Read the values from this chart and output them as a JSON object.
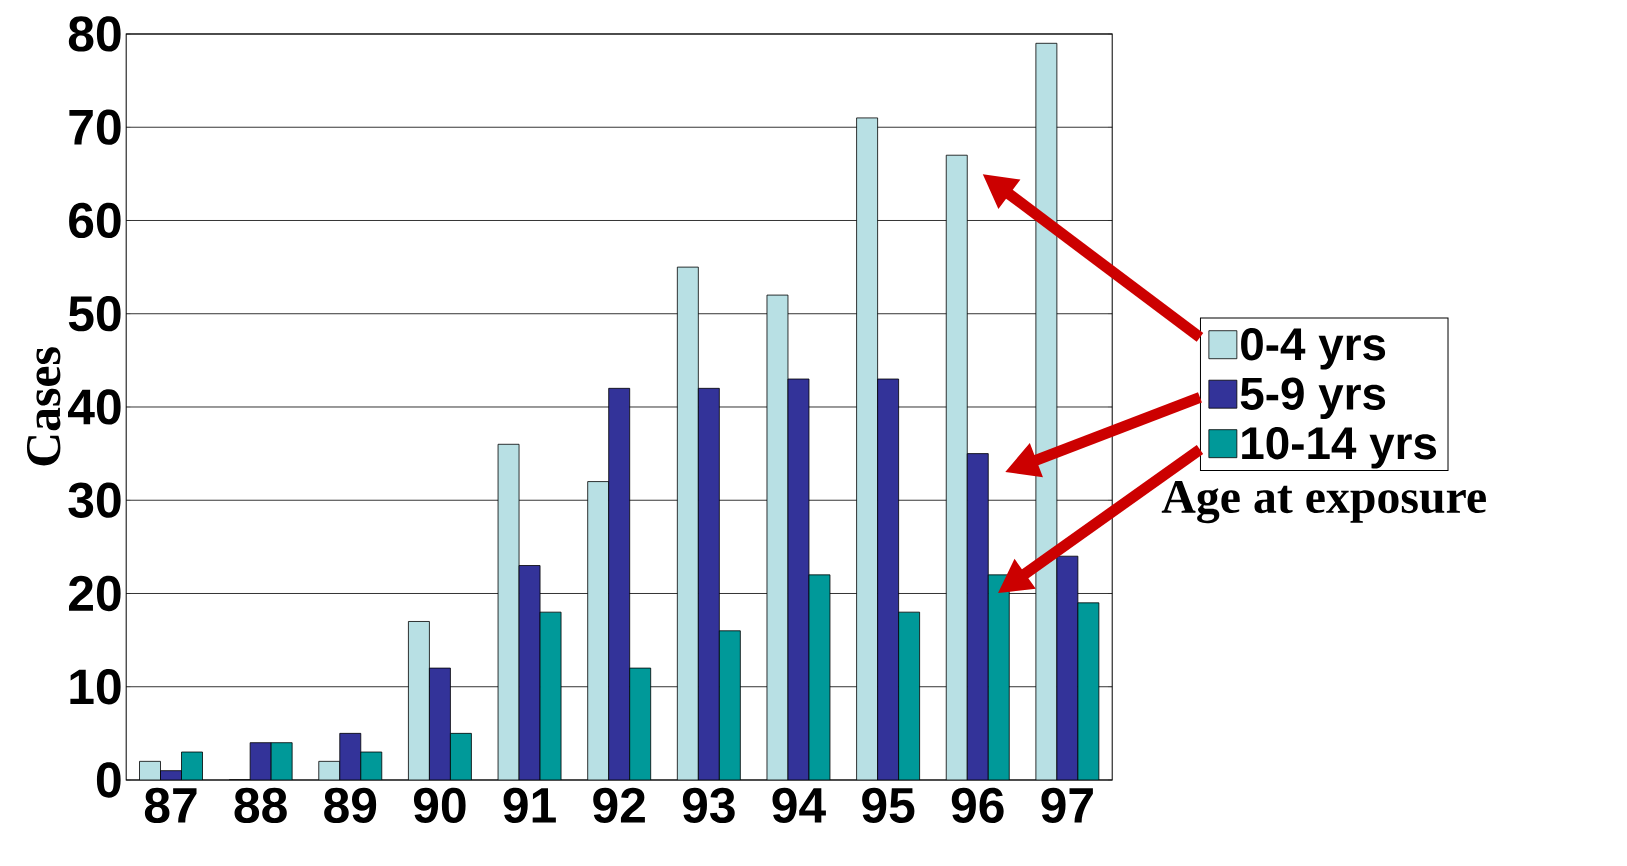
{
  "chart_data": {
    "type": "bar",
    "ylabel": "Cases",
    "legend_title": "Age at exposure",
    "categories": [
      "87",
      "88",
      "89",
      "90",
      "91",
      "92",
      "93",
      "94",
      "95",
      "96",
      "97"
    ],
    "series": [
      {
        "name": "0-4 yrs",
        "color": "#b8e0e4",
        "values": [
          2,
          0,
          2,
          17,
          36,
          32,
          55,
          52,
          71,
          67,
          79
        ]
      },
      {
        "name": "5-9 yrs",
        "color": "#333399",
        "values": [
          1,
          4,
          5,
          12,
          23,
          42,
          42,
          43,
          43,
          35,
          24
        ]
      },
      {
        "name": "10-14 yrs",
        "color": "#009999",
        "values": [
          3,
          4,
          3,
          5,
          18,
          12,
          16,
          22,
          18,
          22,
          19
        ]
      }
    ],
    "ylim": [
      0,
      80
    ],
    "yticks": [
      0,
      10,
      20,
      30,
      40,
      50,
      60,
      70,
      80
    ],
    "grid": "y",
    "legend": "right"
  }
}
